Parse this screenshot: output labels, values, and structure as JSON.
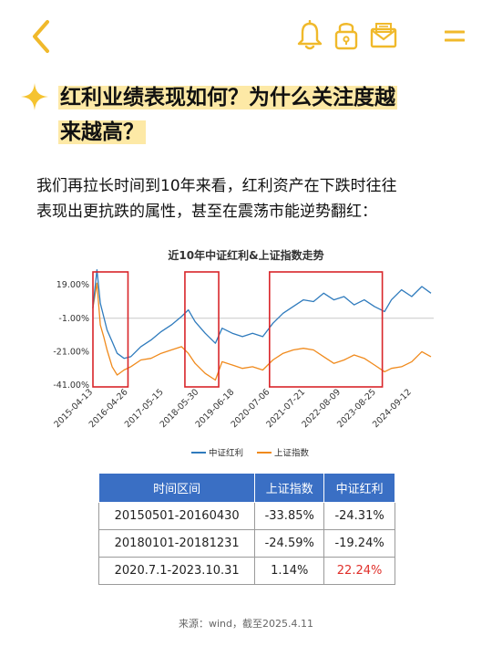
{
  "header": {
    "icons": [
      "back-icon",
      "bell-icon",
      "lock-icon",
      "mail-icon",
      "menu-icon"
    ],
    "accent": "#f0b92b"
  },
  "heading": {
    "line1": "红利业绩表现如何？为什么关注度越",
    "line2": "来越高？"
  },
  "body": {
    "line1": "我们再拉长时间到10年来看，红利资产在下跌时往往",
    "line2": "表现出更抗跌的属性，甚至在震荡市能逆势翻红："
  },
  "chart_data": {
    "type": "line",
    "title": "近10年中证红利&上证指数走势",
    "x_ticks": [
      "2015-04-13",
      "2016-04-26",
      "2017-05-15",
      "2018-05-30",
      "2019-06-18",
      "2020-07-06",
      "2021-07-21",
      "2022-08-09",
      "2023-08-25",
      "2024-09-12"
    ],
    "y_ticks": [
      "19.00%",
      "-1.00%",
      "-21.00%",
      "-41.00%"
    ],
    "ylim": [
      -41,
      30
    ],
    "series": [
      {
        "name": "中证红利",
        "color": "#2f7bbd",
        "x": [
          2015.28,
          2015.4,
          2015.5,
          2015.6,
          2015.7,
          2015.85,
          2016.0,
          2016.2,
          2016.4,
          2016.7,
          2017.0,
          2017.3,
          2017.6,
          2017.9,
          2018.1,
          2018.3,
          2018.6,
          2018.9,
          2019.1,
          2019.4,
          2019.7,
          2020.0,
          2020.3,
          2020.6,
          2020.9,
          2021.2,
          2021.5,
          2021.8,
          2022.1,
          2022.4,
          2022.7,
          2023.0,
          2023.3,
          2023.6,
          2023.9,
          2024.1,
          2024.4,
          2024.7,
          2025.0,
          2025.27
        ],
        "values": [
          5,
          28,
          8,
          0,
          -8,
          -15,
          -22,
          -25,
          -24,
          -18,
          -14,
          -9,
          -5,
          0,
          4,
          -3,
          -10,
          -16,
          -7,
          -10,
          -12,
          -10,
          -12,
          -4,
          2,
          6,
          10,
          9,
          14,
          10,
          12,
          7,
          10,
          6,
          3,
          10,
          16,
          12,
          18,
          14
        ]
      },
      {
        "name": "上证指数",
        "color": "#f08a1c",
        "x": [
          2015.28,
          2015.4,
          2015.5,
          2015.6,
          2015.7,
          2015.85,
          2016.0,
          2016.2,
          2016.4,
          2016.7,
          2017.0,
          2017.3,
          2017.6,
          2017.9,
          2018.1,
          2018.3,
          2018.6,
          2018.9,
          2019.1,
          2019.4,
          2019.7,
          2020.0,
          2020.3,
          2020.6,
          2020.9,
          2021.2,
          2021.5,
          2021.8,
          2022.1,
          2022.4,
          2022.7,
          2023.0,
          2023.3,
          2023.6,
          2023.9,
          2024.1,
          2024.4,
          2024.7,
          2025.0,
          2025.27
        ],
        "values": [
          5,
          20,
          -5,
          -12,
          -20,
          -30,
          -35,
          -32,
          -30,
          -26,
          -25,
          -22,
          -20,
          -18,
          -22,
          -28,
          -34,
          -38,
          -27,
          -29,
          -31,
          -30,
          -32,
          -26,
          -22,
          -20,
          -19,
          -20,
          -24,
          -28,
          -26,
          -23,
          -25,
          -29,
          -33,
          -31,
          -30,
          -27,
          -21,
          -24
        ]
      }
    ],
    "highlight_boxes": [
      {
        "from": "2015-04-13",
        "to": "2016-04-26"
      },
      {
        "from": "2018-01-01",
        "to": "2018-12-31"
      },
      {
        "from": "2020-07-01",
        "to": "2023-10-31"
      }
    ],
    "legend_position": "bottom-center",
    "grid": false
  },
  "table": {
    "headers": [
      "时间区间",
      "上证指数",
      "中证红利"
    ],
    "rows": [
      [
        "20150501-20160430",
        "-33.85%",
        "-24.31%"
      ],
      [
        "20180101-20181231",
        "-24.59%",
        "-19.24%"
      ],
      [
        "2020.7.1-2023.10.31",
        "1.14%",
        "22.24%"
      ]
    ],
    "header_color": "#3a6fc4",
    "highlight_color": "#e0302b"
  },
  "source": "来源：wind，截至2025.4.11"
}
